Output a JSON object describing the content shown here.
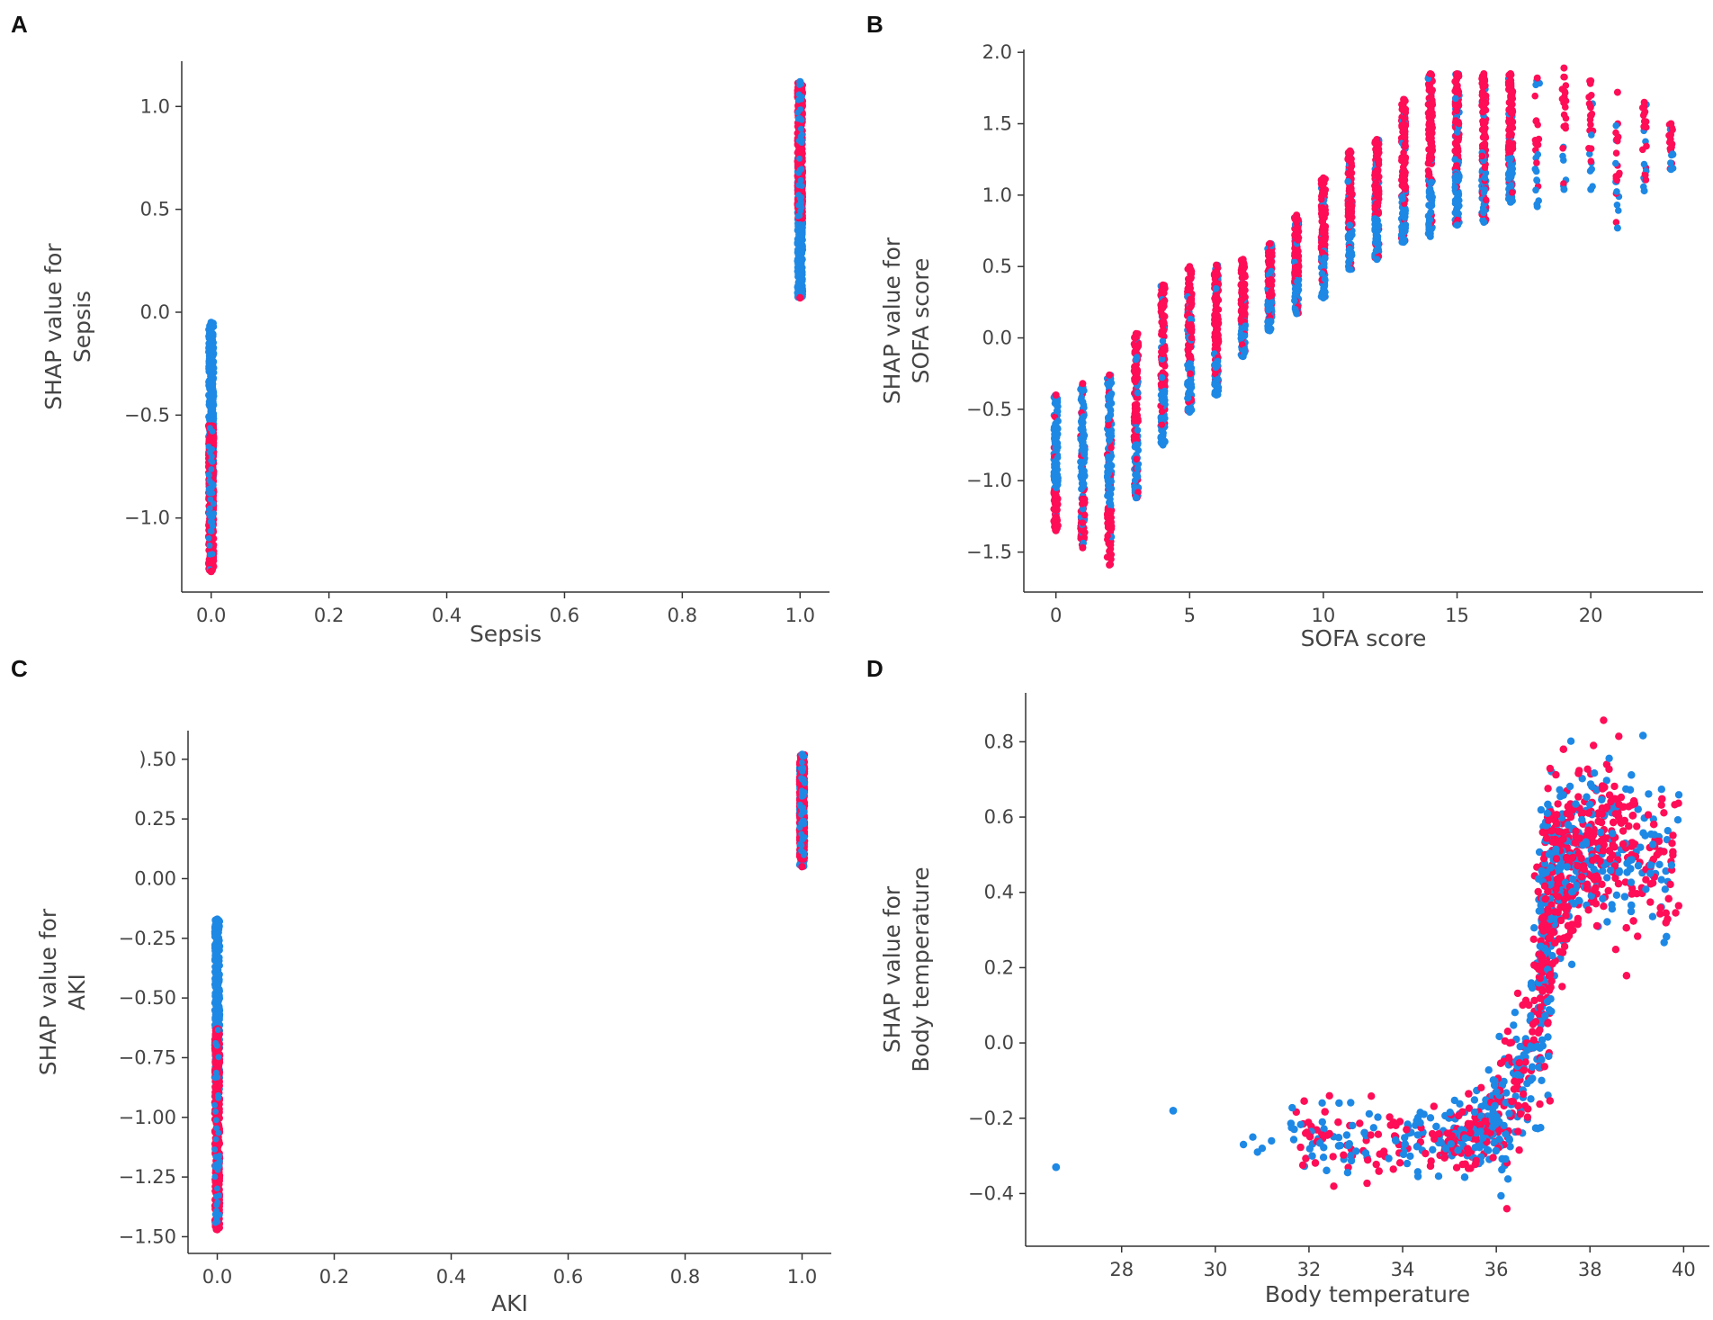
{
  "figure": {
    "panels": [
      "A",
      "B",
      "C",
      "D"
    ]
  },
  "colors": {
    "high": "#ff0d57",
    "low": "#1e88e5"
  },
  "chart_data": [
    {
      "panel": "A",
      "type": "scatter",
      "title": "",
      "xlabel": "Sepsis",
      "ylabel": [
        "SHAP value for",
        "Sepsis"
      ],
      "xlim": [
        -0.05,
        1.05
      ],
      "ylim": [
        -1.36,
        1.22
      ],
      "xticks": [
        0.0,
        0.2,
        0.4,
        0.6,
        0.8,
        1.0
      ],
      "xtick_labels": [
        "0.0",
        "0.2",
        "0.4",
        "0.6",
        "0.8",
        "1.0"
      ],
      "yticks": [
        -1.0,
        -0.5,
        0.0,
        0.5,
        1.0
      ],
      "ytick_labels": [
        "−1.0",
        "−0.5",
        "0.0",
        "0.5",
        "1.0"
      ],
      "series": [
        {
          "x": 0,
          "y_min": -1.26,
          "y_max": -0.05,
          "low_range": [
            -0.85,
            -0.05
          ],
          "high_range": [
            -1.26,
            -0.55
          ]
        },
        {
          "x": 1,
          "y_min": 0.07,
          "y_max": 1.12,
          "low_range": [
            0.07,
            0.75
          ],
          "high_range": [
            0.45,
            1.12
          ]
        }
      ]
    },
    {
      "panel": "B",
      "type": "scatter",
      "title": "",
      "xlabel": "SOFA score",
      "ylabel": [
        "SHAP value for",
        "SOFA score"
      ],
      "xlim": [
        -1.2,
        24.2
      ],
      "ylim": [
        -1.78,
        2.02
      ],
      "xticks": [
        0,
        5,
        10,
        15,
        20
      ],
      "xtick_labels": [
        "0",
        "5",
        "10",
        "15",
        "20"
      ],
      "yticks": [
        -1.5,
        -1.0,
        -0.5,
        0.0,
        0.5,
        1.0,
        1.5,
        2.0
      ],
      "ytick_labels": [
        "−1.5",
        "−1.0",
        "−0.5",
        "0.0",
        "0.5",
        "1.0",
        "1.5",
        "2.0"
      ],
      "columns": [
        {
          "x": 0,
          "y_min": -1.35,
          "y_max": -0.4
        },
        {
          "x": 1,
          "y_min": -1.47,
          "y_max": -0.32
        },
        {
          "x": 2,
          "y_min": -1.59,
          "y_max": -0.26
        },
        {
          "x": 3,
          "y_min": -1.12,
          "y_max": 0.03
        },
        {
          "x": 4,
          "y_min": -0.75,
          "y_max": 0.37
        },
        {
          "x": 5,
          "y_min": -0.52,
          "y_max": 0.5
        },
        {
          "x": 6,
          "y_min": -0.4,
          "y_max": 0.51
        },
        {
          "x": 7,
          "y_min": -0.13,
          "y_max": 0.55
        },
        {
          "x": 8,
          "y_min": 0.05,
          "y_max": 0.66
        },
        {
          "x": 9,
          "y_min": 0.17,
          "y_max": 0.86
        },
        {
          "x": 10,
          "y_min": 0.28,
          "y_max": 1.12
        },
        {
          "x": 11,
          "y_min": 0.48,
          "y_max": 1.31
        },
        {
          "x": 12,
          "y_min": 0.55,
          "y_max": 1.39
        },
        {
          "x": 13,
          "y_min": 0.67,
          "y_max": 1.67
        },
        {
          "x": 14,
          "y_min": 0.71,
          "y_max": 1.85
        },
        {
          "x": 15,
          "y_min": 0.79,
          "y_max": 1.85
        },
        {
          "x": 16,
          "y_min": 0.81,
          "y_max": 1.85
        },
        {
          "x": 17,
          "y_min": 0.95,
          "y_max": 1.85
        },
        {
          "x": 18,
          "y_min": 0.92,
          "y_max": 1.82
        },
        {
          "x": 19,
          "y_min": 1.04,
          "y_max": 1.89
        },
        {
          "x": 20,
          "y_min": 1.04,
          "y_max": 1.8
        },
        {
          "x": 21,
          "y_min": 0.77,
          "y_max": 1.72
        },
        {
          "x": 22,
          "y_min": 1.03,
          "y_max": 1.65
        },
        {
          "x": 23,
          "y_min": 1.18,
          "y_max": 1.5
        }
      ]
    },
    {
      "panel": "C",
      "type": "scatter",
      "title": "",
      "xlabel": "AKI",
      "ylabel": [
        "SHAP value for",
        "AKI"
      ],
      "xlim": [
        -0.05,
        1.05
      ],
      "ylim": [
        -1.57,
        0.62
      ],
      "xticks": [
        0.0,
        0.2,
        0.4,
        0.6,
        0.8,
        1.0
      ],
      "xtick_labels": [
        "0.0",
        "0.2",
        "0.4",
        "0.6",
        "0.8",
        "1.0"
      ],
      "yticks": [
        -1.5,
        -1.25,
        -1.0,
        -0.75,
        -0.5,
        -0.25,
        0.0,
        0.25,
        0.5
      ],
      "ytick_labels": [
        "−1.50",
        "−1.25",
        "−1.00",
        "−0.75",
        "−0.50",
        "−0.25",
        "0.00",
        "0.25",
        ").50"
      ],
      "series": [
        {
          "x": 0,
          "y_min": -1.47,
          "y_max": -0.17,
          "low_range": [
            -0.92,
            -0.17
          ],
          "high_range": [
            -1.47,
            -0.62
          ]
        },
        {
          "x": 1,
          "y_min": 0.05,
          "y_max": 0.52,
          "low_range": [
            0.05,
            0.48
          ],
          "high_range": [
            0.08,
            0.52
          ]
        }
      ]
    },
    {
      "panel": "D",
      "type": "scatter",
      "title": "",
      "xlabel": "Body temperature",
      "ylabel": [
        "SHAP value for",
        "Body temperature"
      ],
      "xlim": [
        25.95,
        40.55
      ],
      "ylim": [
        -0.54,
        0.93
      ],
      "xticks": [
        28,
        30,
        32,
        34,
        36,
        38,
        40
      ],
      "xtick_labels": [
        "28",
        "30",
        "32",
        "34",
        "36",
        "38",
        "40"
      ],
      "yticks": [
        -0.4,
        -0.2,
        0.0,
        0.2,
        0.4,
        0.6,
        0.8
      ],
      "ytick_labels": [
        "−0.4",
        "−0.2",
        "0.0",
        "0.2",
        "0.4",
        "0.6",
        "0.8"
      ],
      "outliers": [
        {
          "x": 26.6,
          "y": -0.33
        },
        {
          "x": 29.1,
          "y": -0.18
        }
      ],
      "trend": [
        {
          "x": 30.6,
          "y": -0.27
        },
        {
          "x": 32.0,
          "y": -0.25
        },
        {
          "x": 34.0,
          "y": -0.27
        },
        {
          "x": 35.5,
          "y": -0.24
        },
        {
          "x": 36.3,
          "y": -0.16
        },
        {
          "x": 36.7,
          "y": -0.05
        },
        {
          "x": 37.0,
          "y": 0.25
        },
        {
          "x": 37.3,
          "y": 0.45
        },
        {
          "x": 38.0,
          "y": 0.55
        },
        {
          "x": 39.0,
          "y": 0.52
        },
        {
          "x": 40.0,
          "y": 0.5
        }
      ]
    }
  ]
}
